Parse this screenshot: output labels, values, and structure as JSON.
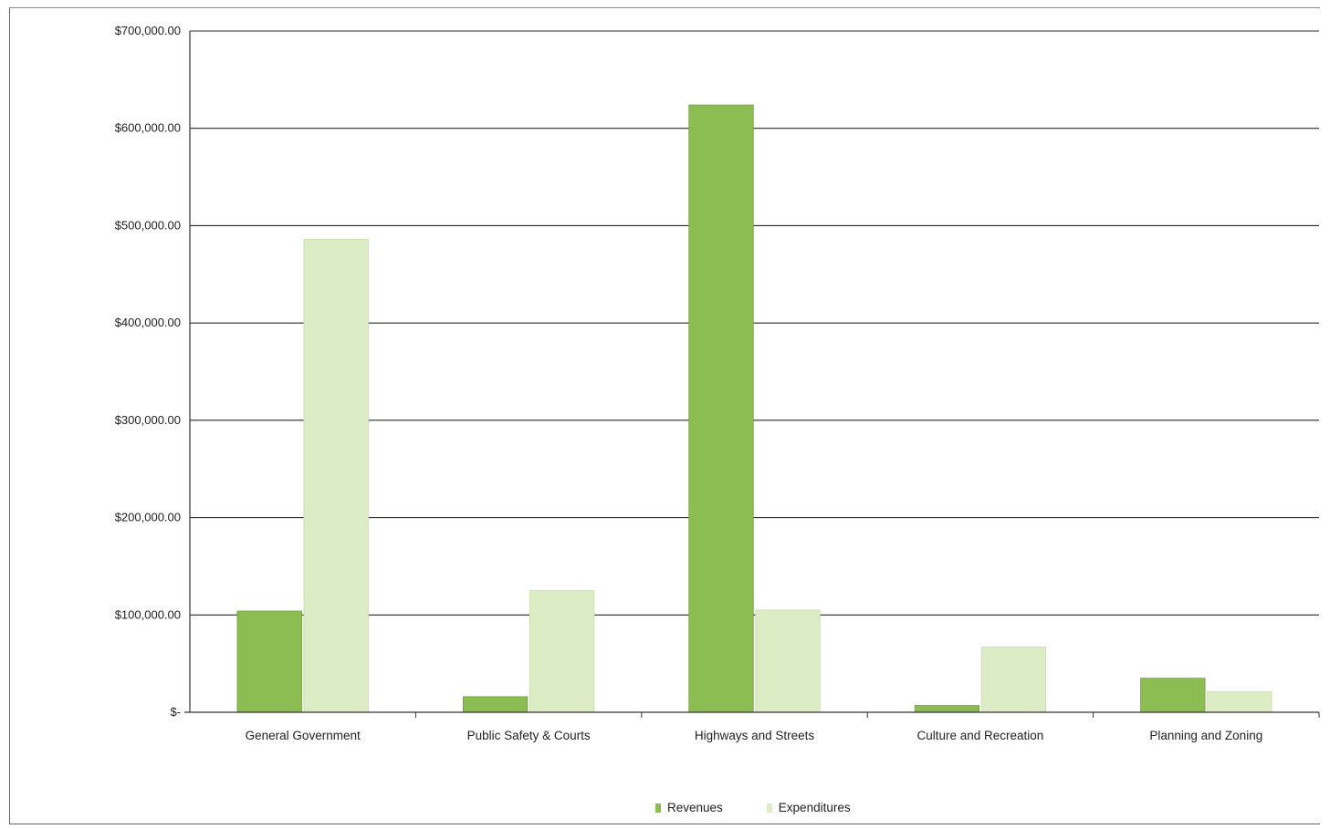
{
  "chart_data": {
    "type": "bar",
    "categories": [
      "General Government",
      "Public Safety & Courts",
      "Highways and Streets",
      "Culture and Recreation",
      "Planning and Zoning"
    ],
    "series": [
      {
        "name": "Revenues",
        "color": "#8cbd52",
        "values": [
          104000,
          16000,
          624000,
          7000,
          35000
        ]
      },
      {
        "name": "Expenditures",
        "color": "#dcecc4",
        "values": [
          486000,
          125000,
          105000,
          67000,
          21000
        ]
      }
    ],
    "yticks": [
      "$-",
      "$100,000.00",
      "$200,000.00",
      "$300,000.00",
      "$400,000.00",
      "$500,000.00",
      "$600,000.00",
      "$700,000.00"
    ],
    "ylim": [
      0,
      700000
    ],
    "grid": true,
    "legend_position": "bottom"
  }
}
